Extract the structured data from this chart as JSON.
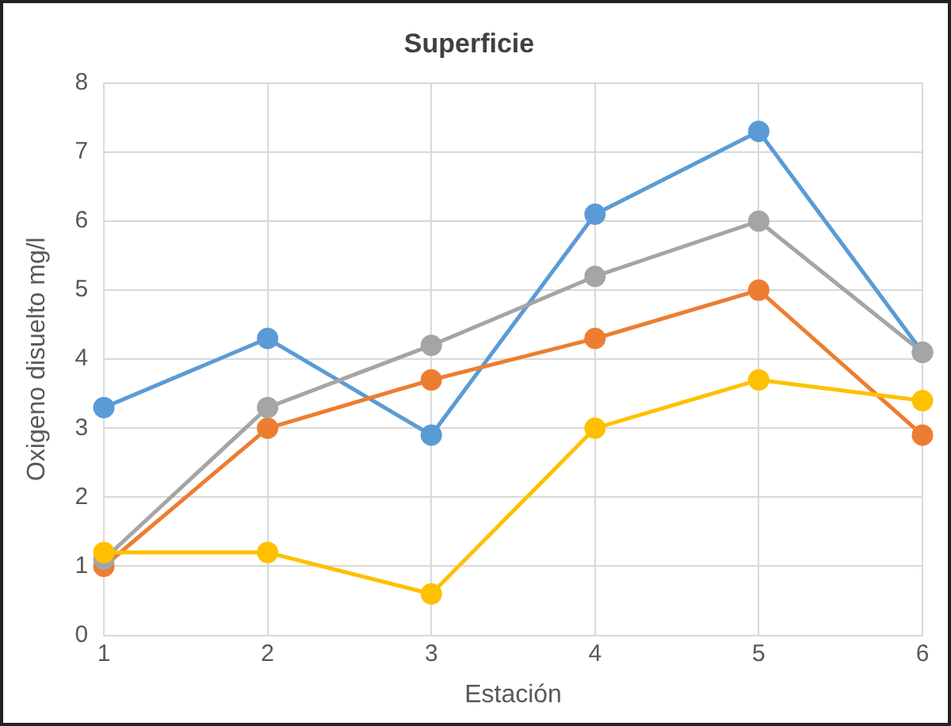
{
  "chart_data": {
    "type": "line",
    "title": "Superficie",
    "xlabel": "Estación",
    "ylabel": "Oxigeno disuelto mg/l",
    "x": [
      1,
      2,
      3,
      4,
      5,
      6
    ],
    "series": [
      {
        "color": "#5b9bd5",
        "values": [
          3.3,
          4.3,
          2.9,
          6.1,
          7.3,
          4.1
        ]
      },
      {
        "color": "#ed7d31",
        "values": [
          1.0,
          3.0,
          3.7,
          4.3,
          5.0,
          2.9
        ]
      },
      {
        "color": "#a5a5a5",
        "values": [
          1.1,
          3.3,
          4.2,
          5.2,
          6.0,
          4.1
        ]
      },
      {
        "color": "#ffc000",
        "values": [
          1.2,
          1.2,
          0.6,
          3.0,
          3.7,
          3.4
        ]
      }
    ],
    "xlim": [
      1,
      6
    ],
    "xticks": [
      1,
      2,
      3,
      4,
      5,
      6
    ],
    "ylim": [
      0,
      8
    ],
    "yticks": [
      0,
      1,
      2,
      3,
      4,
      5,
      6,
      7,
      8
    ],
    "grid": true,
    "legend": false,
    "marker": "circle",
    "line_style": "solid"
  }
}
